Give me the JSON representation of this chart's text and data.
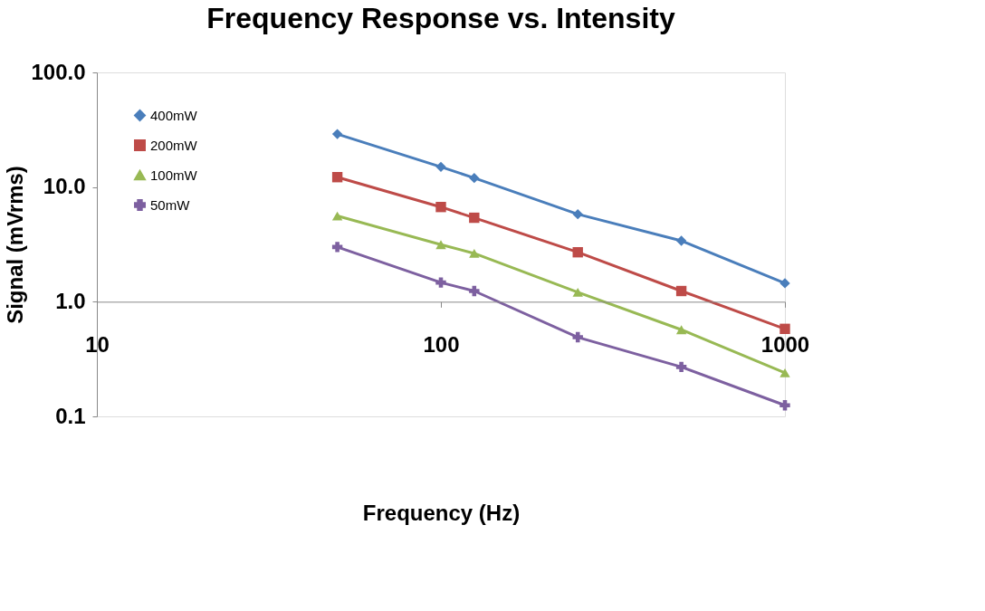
{
  "chart_data": {
    "type": "line",
    "title": "Frequency Response vs. Intensity",
    "xlabel": "Frequency (Hz)",
    "ylabel": "Signal (mVrms)",
    "x": [
      50,
      100,
      125,
      250,
      500,
      1000
    ],
    "series": [
      {
        "name": "400mW",
        "color": "#4a7ebb",
        "marker": "diamond",
        "values": [
          29,
          15,
          12,
          5.8,
          3.4,
          1.45
        ]
      },
      {
        "name": "200mW",
        "color": "#be4b48",
        "marker": "square",
        "values": [
          12.2,
          6.7,
          5.4,
          2.7,
          1.24,
          0.58
        ]
      },
      {
        "name": "100mW",
        "color": "#98b954",
        "marker": "triangle",
        "values": [
          5.6,
          3.15,
          2.64,
          1.21,
          0.57,
          0.24
        ]
      },
      {
        "name": "50mW",
        "color": "#7d60a0",
        "marker": "cross",
        "values": [
          3.0,
          1.47,
          1.24,
          0.49,
          0.27,
          0.125
        ]
      }
    ],
    "log": "xy",
    "xlim": [
      10,
      1000
    ],
    "ylim": [
      0.1,
      100
    ],
    "xticks": [
      10,
      100,
      1000
    ],
    "yticks": [
      {
        "value": 100,
        "label": "100.0"
      },
      {
        "value": 10,
        "label": "10.0"
      },
      {
        "value": 1,
        "label": "1.0"
      },
      {
        "value": 0.1,
        "label": "0.1"
      }
    ],
    "grid": false,
    "legend": "top left",
    "line_style": "solid"
  }
}
